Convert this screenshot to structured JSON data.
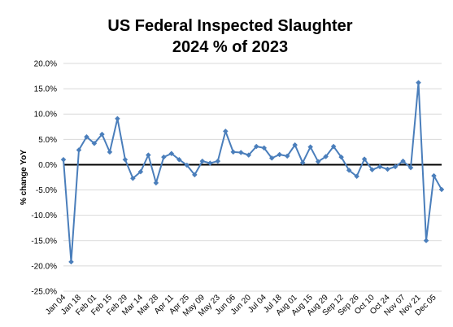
{
  "chart_data": {
    "type": "line",
    "title": [
      "US Federal Inspected Slaughter",
      "2024 % of 2023"
    ],
    "ylabel": "% change YoY",
    "xlabel": "",
    "ylim": [
      -25,
      20
    ],
    "y_ticks": [
      20,
      15,
      10,
      5,
      0,
      -5,
      -10,
      -15,
      -20,
      -25
    ],
    "y_tick_labels": [
      "20.0%",
      "15.0%",
      "10.0%",
      "5.0%",
      "0.0%",
      "-5.0%",
      "-10.0%",
      "-15.0%",
      "-20.0%",
      "-25.0%"
    ],
    "x_tick_labels": [
      "Jan 04",
      "Jan 18",
      "Feb 01",
      "Feb 15",
      "Feb 29",
      "Mar 14",
      "Mar 28",
      "Apr 11",
      "Apr 25",
      "May 09",
      "May 23",
      "Jun 06",
      "Jun 20",
      "Jul 04",
      "Jul 18",
      "Aug 01",
      "Aug 15",
      "Aug 29",
      "Sep 12",
      "Sep 26",
      "Oct 10",
      "Oct 24",
      "Nov 07",
      "Nov 21",
      "Dec 05"
    ],
    "grid": true,
    "legend": "none",
    "series": [
      {
        "color": "#4a7ebb",
        "x": [
          "Jan 04",
          "Jan 11",
          "Jan 18",
          "Jan 25",
          "Feb 01",
          "Feb 08",
          "Feb 15",
          "Feb 22",
          "Feb 29",
          "Mar 07",
          "Mar 14",
          "Mar 21",
          "Mar 28",
          "Apr 04",
          "Apr 11",
          "Apr 18",
          "Apr 25",
          "May 02",
          "May 09",
          "May 16",
          "May 23",
          "May 30",
          "Jun 06",
          "Jun 13",
          "Jun 20",
          "Jun 27",
          "Jul 04",
          "Jul 11",
          "Jul 18",
          "Jul 25",
          "Aug 01",
          "Aug 08",
          "Aug 15",
          "Aug 22",
          "Aug 29",
          "Sep 05",
          "Sep 12",
          "Sep 19",
          "Sep 26",
          "Oct 03",
          "Oct 10",
          "Oct 17",
          "Oct 24",
          "Oct 31",
          "Nov 07",
          "Nov 14",
          "Nov 21",
          "Nov 28",
          "Dec 05",
          "Dec 12"
        ],
        "values": [
          1.0,
          -19.2,
          2.9,
          5.5,
          4.2,
          6.0,
          2.5,
          9.1,
          1.0,
          -2.7,
          -1.4,
          1.9,
          -3.6,
          1.5,
          2.2,
          1.0,
          -0.1,
          -2.0,
          0.7,
          0.3,
          0.7,
          6.6,
          2.5,
          2.4,
          1.9,
          3.6,
          3.3,
          1.3,
          2.0,
          1.7,
          3.9,
          0.4,
          3.5,
          0.6,
          1.6,
          3.6,
          1.5,
          -1.1,
          -2.3,
          1.1,
          -1.0,
          -0.4,
          -0.9,
          -0.4,
          0.7,
          -0.6,
          16.2,
          -15.0,
          -2.2,
          -4.9
        ]
      }
    ]
  }
}
